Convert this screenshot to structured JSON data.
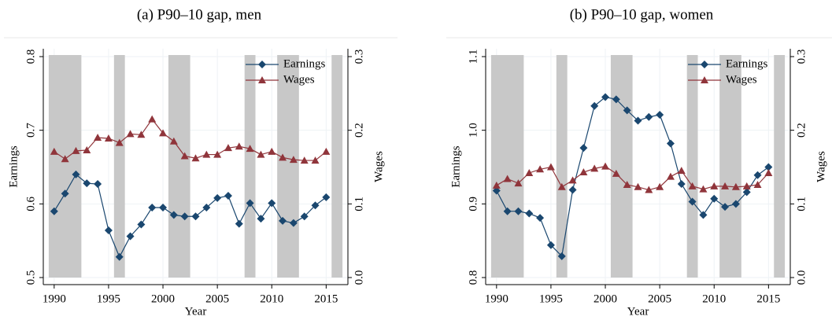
{
  "chart_data": [
    {
      "type": "line",
      "title": "(a) P90–10 gap, men",
      "xlabel": "Year",
      "ylabel": "Earnings",
      "y2label": "Wages",
      "x": [
        1990,
        1991,
        1992,
        1993,
        1994,
        1995,
        1996,
        1997,
        1998,
        1999,
        2000,
        2001,
        2002,
        2003,
        2004,
        2005,
        2006,
        2007,
        2008,
        2009,
        2010,
        2011,
        2012,
        2013,
        2014,
        2015
      ],
      "series": [
        {
          "name": "Earnings",
          "color": "#1a476f",
          "marker": "diamond",
          "values": [
            0.59,
            0.614,
            0.64,
            0.628,
            0.627,
            0.564,
            0.528,
            0.556,
            0.572,
            0.595,
            0.595,
            0.585,
            0.583,
            0.583,
            0.595,
            0.608,
            0.611,
            0.573,
            0.601,
            0.58,
            0.601,
            0.577,
            0.574,
            0.583,
            0.598,
            0.609
          ]
        },
        {
          "name": "Wages",
          "color": "#90353b",
          "marker": "triangle",
          "axis": "y2",
          "values": [
            0.171,
            0.161,
            0.172,
            0.173,
            0.19,
            0.189,
            0.183,
            0.195,
            0.194,
            0.215,
            0.196,
            0.185,
            0.165,
            0.162,
            0.167,
            0.167,
            0.176,
            0.178,
            0.175,
            0.167,
            0.171,
            0.163,
            0.16,
            0.159,
            0.159,
            0.171
          ]
        }
      ],
      "xlim": [
        1989,
        2017
      ],
      "xticks": [
        1990,
        1995,
        2000,
        2005,
        2010,
        2015
      ],
      "ylim": [
        0.5,
        0.8
      ],
      "yticks": [
        0.5,
        0.6,
        0.7,
        0.8
      ],
      "y2lim": [
        0,
        0.3
      ],
      "y2ticks": [
        {
          "value": 0,
          "label": "0.0"
        },
        0.1,
        0.2,
        0.3
      ],
      "shaded_periods": [
        [
          1989.5,
          1992.5
        ],
        [
          1995.5,
          1996.5
        ],
        [
          2000.5,
          2002.5
        ],
        [
          2007.5,
          2008.5
        ],
        [
          2010.5,
          2012.5
        ],
        [
          2015.5,
          2016.5
        ]
      ],
      "shade_color": "#c8c8c8",
      "grid": true,
      "legend": "upper right"
    },
    {
      "type": "line",
      "title": "(b) P90–10 gap, women",
      "xlabel": "Year",
      "ylabel": "Earnings",
      "y2label": "Wages",
      "x": [
        1990,
        1991,
        1992,
        1993,
        1994,
        1995,
        1996,
        1997,
        1998,
        1999,
        2000,
        2001,
        2002,
        2003,
        2004,
        2005,
        2006,
        2007,
        2008,
        2009,
        2010,
        2011,
        2012,
        2013,
        2014,
        2015
      ],
      "series": [
        {
          "name": "Earnings",
          "color": "#1a476f",
          "marker": "diamond",
          "values": [
            0.918,
            0.89,
            0.89,
            0.887,
            0.881,
            0.844,
            0.829,
            0.919,
            0.976,
            1.033,
            1.045,
            1.042,
            1.027,
            1.013,
            1.018,
            1.021,
            0.982,
            0.927,
            0.903,
            0.885,
            0.907,
            0.896,
            0.9,
            0.916,
            0.939,
            0.95
          ]
        },
        {
          "name": "Wages",
          "color": "#90353b",
          "marker": "triangle",
          "axis": "y2",
          "values": [
            0.125,
            0.134,
            0.128,
            0.142,
            0.147,
            0.15,
            0.123,
            0.132,
            0.143,
            0.148,
            0.151,
            0.141,
            0.126,
            0.123,
            0.119,
            0.123,
            0.137,
            0.145,
            0.124,
            0.12,
            0.124,
            0.124,
            0.123,
            0.124,
            0.126,
            0.142
          ]
        }
      ],
      "xlim": [
        1989,
        2017
      ],
      "xticks": [
        1990,
        1995,
        2000,
        2005,
        2010,
        2015
      ],
      "ylim": [
        0.8,
        1.1
      ],
      "yticks": [
        0.8,
        0.9,
        {
          "value": 1,
          "label": "1.0"
        },
        1.1
      ],
      "y2lim": [
        0,
        0.3
      ],
      "y2ticks": [
        {
          "value": 0,
          "label": "0.0"
        },
        0.1,
        0.2,
        0.3
      ],
      "shaded_periods": [
        [
          1989.5,
          1992.5
        ],
        [
          1995.5,
          1996.5
        ],
        [
          2000.5,
          2002.5
        ],
        [
          2007.5,
          2008.5
        ],
        [
          2010.5,
          2012.5
        ],
        [
          2015.5,
          2016.5
        ]
      ],
      "shade_color": "#c8c8c8",
      "grid": true,
      "legend": "upper right"
    }
  ]
}
